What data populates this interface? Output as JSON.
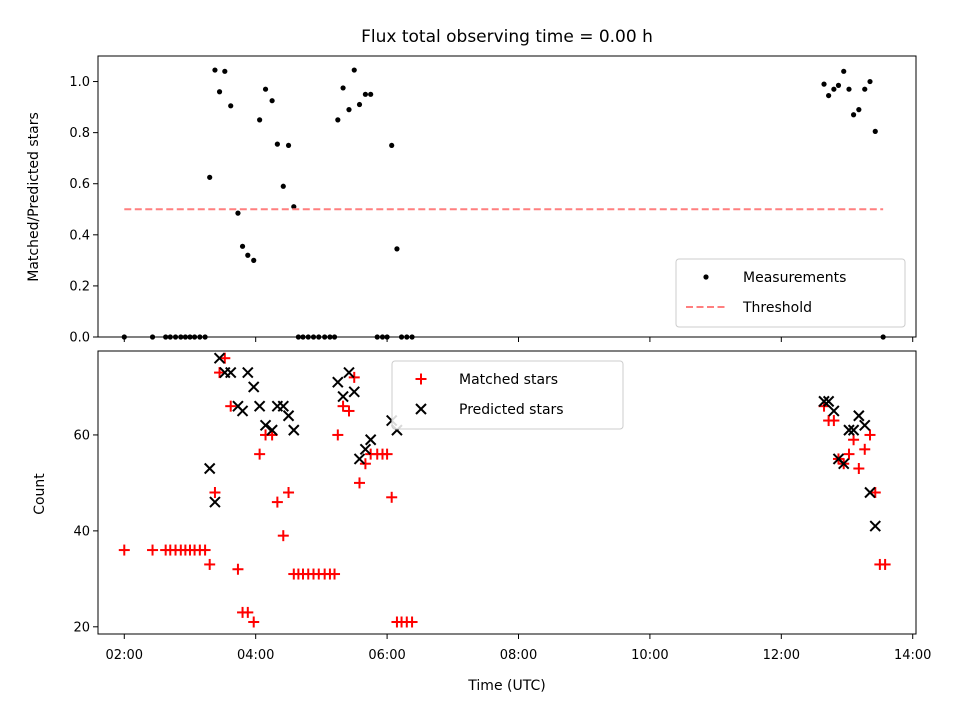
{
  "chart_data": [
    {
      "type": "scatter",
      "title": "Flux total observing time = 0.00 h",
      "xlabel": "",
      "ylabel": "Matched/Predicted stars",
      "xlim": [
        1.6,
        14.05
      ],
      "ylim": [
        0,
        1.1
      ],
      "yticks": [
        "0.0",
        "0.2",
        "0.4",
        "0.6",
        "0.8",
        "1.0"
      ],
      "grid": false,
      "legend": "bottom-right",
      "series": [
        {
          "name": "Measurements",
          "marker": "dot",
          "color": "#000000",
          "points": [
            [
              2.0,
              0.0
            ],
            [
              2.43,
              0.0
            ],
            [
              2.63,
              0.0
            ],
            [
              2.7,
              0.0
            ],
            [
              2.78,
              0.0
            ],
            [
              2.86,
              0.0
            ],
            [
              2.93,
              0.0
            ],
            [
              3.0,
              0.0
            ],
            [
              3.07,
              0.0
            ],
            [
              3.15,
              0.0
            ],
            [
              3.23,
              0.0
            ],
            [
              3.3,
              0.625
            ],
            [
              3.38,
              1.045
            ],
            [
              3.45,
              0.96
            ],
            [
              3.53,
              1.04
            ],
            [
              3.62,
              0.905
            ],
            [
              3.73,
              0.485
            ],
            [
              3.8,
              0.355
            ],
            [
              3.88,
              0.32
            ],
            [
              3.97,
              0.3
            ],
            [
              4.06,
              0.85
            ],
            [
              4.15,
              0.97
            ],
            [
              4.25,
              0.925
            ],
            [
              4.33,
              0.755
            ],
            [
              4.42,
              0.59
            ],
            [
              4.5,
              0.75
            ],
            [
              4.58,
              0.51
            ],
            [
              4.65,
              0.0
            ],
            [
              4.72,
              0.0
            ],
            [
              4.8,
              0.0
            ],
            [
              4.88,
              0.0
            ],
            [
              4.96,
              0.0
            ],
            [
              5.05,
              0.0
            ],
            [
              5.13,
              0.0
            ],
            [
              5.2,
              0.0
            ],
            [
              5.25,
              0.85
            ],
            [
              5.33,
              0.975
            ],
            [
              5.42,
              0.89
            ],
            [
              5.5,
              1.045
            ],
            [
              5.58,
              0.91
            ],
            [
              5.67,
              0.95
            ],
            [
              5.75,
              0.95
            ],
            [
              5.85,
              0.0
            ],
            [
              5.93,
              0.0
            ],
            [
              6.0,
              0.0
            ],
            [
              6.07,
              0.75
            ],
            [
              6.15,
              0.345
            ],
            [
              6.22,
              0.0
            ],
            [
              6.3,
              0.0
            ],
            [
              6.38,
              0.0
            ],
            [
              12.65,
              0.99
            ],
            [
              12.72,
              0.945
            ],
            [
              12.8,
              0.97
            ],
            [
              12.87,
              0.985
            ],
            [
              12.95,
              1.04
            ],
            [
              13.03,
              0.97
            ],
            [
              13.1,
              0.87
            ],
            [
              13.18,
              0.89
            ],
            [
              13.27,
              0.97
            ],
            [
              13.35,
              1.0
            ],
            [
              13.43,
              0.805
            ],
            [
              13.55,
              0.0
            ]
          ]
        },
        {
          "name": "Threshold",
          "marker": "dashed-line",
          "color": "#ff7f7f",
          "points": [
            [
              2.0,
              0.5
            ],
            [
              13.55,
              0.5
            ]
          ]
        }
      ]
    },
    {
      "type": "scatter",
      "title": "",
      "xlabel": "Time (UTC)",
      "ylabel": "Count",
      "xlim": [
        1.6,
        14.05
      ],
      "ylim": [
        18.5,
        77.5
      ],
      "xticks": [
        {
          "value": 2,
          "label": "02:00"
        },
        {
          "value": 4,
          "label": "04:00"
        },
        {
          "value": 6,
          "label": "06:00"
        },
        {
          "value": 8,
          "label": "08:00"
        },
        {
          "value": 10,
          "label": "10:00"
        },
        {
          "value": 12,
          "label": "12:00"
        },
        {
          "value": 14,
          "label": "14:00"
        }
      ],
      "yticks": [
        "20",
        "40",
        "60"
      ],
      "grid": false,
      "legend": "top-center",
      "series": [
        {
          "name": "Matched stars",
          "marker": "plus",
          "color": "#ff0000",
          "points": [
            [
              2.0,
              36
            ],
            [
              2.43,
              36
            ],
            [
              2.63,
              36
            ],
            [
              2.7,
              36
            ],
            [
              2.78,
              36
            ],
            [
              2.86,
              36
            ],
            [
              2.93,
              36
            ],
            [
              3.0,
              36
            ],
            [
              3.07,
              36
            ],
            [
              3.15,
              36
            ],
            [
              3.23,
              36
            ],
            [
              3.3,
              33
            ],
            [
              3.38,
              48
            ],
            [
              3.45,
              73
            ],
            [
              3.53,
              76
            ],
            [
              3.62,
              66
            ],
            [
              3.73,
              32
            ],
            [
              3.8,
              23
            ],
            [
              3.88,
              23
            ],
            [
              3.97,
              21
            ],
            [
              4.06,
              56
            ],
            [
              4.15,
              60
            ],
            [
              4.25,
              60
            ],
            [
              4.33,
              46
            ],
            [
              4.42,
              39
            ],
            [
              4.5,
              48
            ],
            [
              4.58,
              31
            ],
            [
              4.65,
              31
            ],
            [
              4.72,
              31
            ],
            [
              4.8,
              31
            ],
            [
              4.88,
              31
            ],
            [
              4.96,
              31
            ],
            [
              5.05,
              31
            ],
            [
              5.13,
              31
            ],
            [
              5.2,
              31
            ],
            [
              5.25,
              60
            ],
            [
              5.33,
              66
            ],
            [
              5.42,
              65
            ],
            [
              5.5,
              72
            ],
            [
              5.58,
              50
            ],
            [
              5.67,
              54
            ],
            [
              5.75,
              56
            ],
            [
              5.85,
              56
            ],
            [
              5.93,
              56
            ],
            [
              6.0,
              56
            ],
            [
              6.07,
              47
            ],
            [
              6.15,
              21
            ],
            [
              6.22,
              21
            ],
            [
              6.3,
              21
            ],
            [
              6.38,
              21
            ],
            [
              12.65,
              66
            ],
            [
              12.72,
              63
            ],
            [
              12.8,
              63
            ],
            [
              12.87,
              55
            ],
            [
              12.95,
              54
            ],
            [
              13.03,
              56
            ],
            [
              13.1,
              59
            ],
            [
              13.18,
              53
            ],
            [
              13.27,
              57
            ],
            [
              13.35,
              60
            ],
            [
              13.43,
              48
            ],
            [
              13.5,
              33
            ],
            [
              13.58,
              33
            ]
          ]
        },
        {
          "name": "Predicted stars",
          "marker": "x",
          "color": "#000000",
          "points": [
            [
              3.3,
              53
            ],
            [
              3.38,
              46
            ],
            [
              3.45,
              76
            ],
            [
              3.53,
              73
            ],
            [
              3.62,
              73
            ],
            [
              3.73,
              66
            ],
            [
              3.8,
              65
            ],
            [
              3.88,
              73
            ],
            [
              3.97,
              70
            ],
            [
              4.06,
              66
            ],
            [
              4.15,
              62
            ],
            [
              4.25,
              61
            ],
            [
              4.33,
              66
            ],
            [
              4.42,
              66
            ],
            [
              4.5,
              64
            ],
            [
              4.58,
              61
            ],
            [
              5.25,
              71
            ],
            [
              5.33,
              68
            ],
            [
              5.42,
              73
            ],
            [
              5.5,
              69
            ],
            [
              5.58,
              55
            ],
            [
              5.67,
              57
            ],
            [
              5.75,
              59
            ],
            [
              6.07,
              63
            ],
            [
              6.15,
              61
            ],
            [
              12.65,
              67
            ],
            [
              12.72,
              67
            ],
            [
              12.8,
              65
            ],
            [
              12.87,
              55
            ],
            [
              12.95,
              54
            ],
            [
              13.03,
              61
            ],
            [
              13.1,
              61
            ],
            [
              13.18,
              64
            ],
            [
              13.27,
              62
            ],
            [
              13.35,
              48
            ],
            [
              13.43,
              41
            ]
          ]
        }
      ]
    }
  ]
}
